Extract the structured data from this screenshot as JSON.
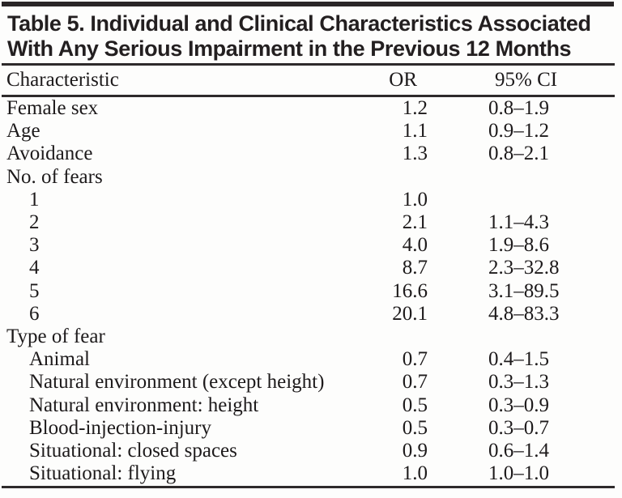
{
  "colors": {
    "ink": "#231f20",
    "background": "#fdfdfc"
  },
  "table": {
    "title_line1": "Table 5. Individual and Clinical Characteristics Associated",
    "title_line2": "With Any Serious Impairment in the Previous 12 Months",
    "columns": [
      "Characteristic",
      "OR",
      "95% CI"
    ],
    "rows": [
      {
        "label": "Female sex",
        "indent": 0,
        "or": "1.2",
        "ci": "0.8–1.9"
      },
      {
        "label": "Age",
        "indent": 0,
        "or": "1.1",
        "ci": "0.9–1.2"
      },
      {
        "label": "Avoidance",
        "indent": 0,
        "or": "1.3",
        "ci": "0.8–2.1"
      },
      {
        "label": "No. of fears",
        "indent": 0,
        "or": "",
        "ci": ""
      },
      {
        "label": "1",
        "indent": 1,
        "or": "1.0",
        "ci": ""
      },
      {
        "label": "2",
        "indent": 1,
        "or": "2.1",
        "ci": "1.1–4.3"
      },
      {
        "label": "3",
        "indent": 1,
        "or": "4.0",
        "ci": "1.9–8.6"
      },
      {
        "label": "4",
        "indent": 1,
        "or": "8.7",
        "ci": "2.3–32.8"
      },
      {
        "label": "5",
        "indent": 1,
        "or": "16.6",
        "ci": "3.1–89.5"
      },
      {
        "label": "6",
        "indent": 1,
        "or": "20.1",
        "ci": "4.8–83.3"
      },
      {
        "label": "Type of fear",
        "indent": 0,
        "or": "",
        "ci": ""
      },
      {
        "label": "Animal",
        "indent": 1,
        "or": "0.7",
        "ci": "0.4–1.5"
      },
      {
        "label": "Natural environment (except height)",
        "indent": 1,
        "or": "0.7",
        "ci": "0.3–1.3"
      },
      {
        "label": "Natural environment: height",
        "indent": 1,
        "or": "0.5",
        "ci": "0.3–0.9"
      },
      {
        "label": "Blood-injection-injury",
        "indent": 1,
        "or": "0.5",
        "ci": "0.3–0.7"
      },
      {
        "label": "Situational: closed spaces",
        "indent": 1,
        "or": "0.9",
        "ci": "0.6–1.4"
      },
      {
        "label": "Situational: flying",
        "indent": 1,
        "or": "1.0",
        "ci": "1.0–1.0"
      }
    ]
  }
}
